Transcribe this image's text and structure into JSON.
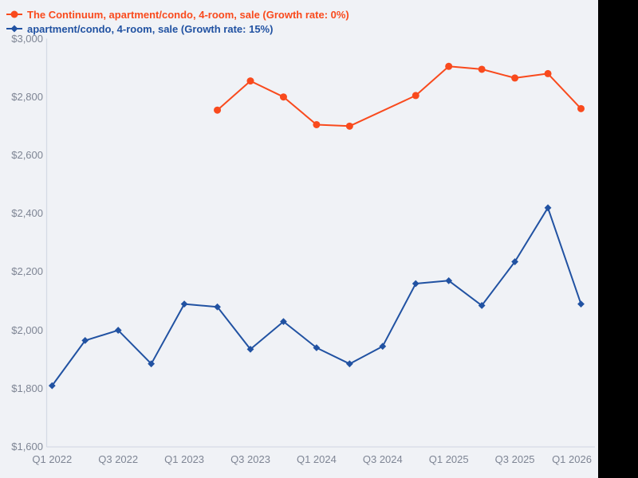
{
  "canvas": {
    "background_color": "#f0f2f6",
    "right_band_color": "#000000"
  },
  "legend": [
    {
      "label": "The Continuum, apartment/condo, 4-room, sale (Growth rate: 0%)",
      "color": "#f94a1d",
      "marker": "circle"
    },
    {
      "label": "apartment/condo, 4-room, sale (Growth rate: 15%)",
      "color": "#2152a2",
      "marker": "diamond"
    }
  ],
  "chart_data": {
    "type": "line",
    "title": "",
    "xlabel": "",
    "ylabel": "",
    "grid": false,
    "legend_position": "top-left",
    "ylim": [
      1600,
      3000
    ],
    "y_ticks": {
      "values": [
        3000,
        2800,
        2600,
        2400,
        2200,
        2000,
        1800,
        1600
      ],
      "labels": [
        "$3,000",
        "$2,800",
        "$2,600",
        "$2,400",
        "$2,200",
        "$2,000",
        "$1,800",
        "$1,600"
      ]
    },
    "categories": [
      "Q1 2022",
      "Q2 2022",
      "Q3 2022",
      "Q4 2022",
      "Q1 2023",
      "Q2 2023",
      "Q3 2023",
      "Q4 2023",
      "Q1 2024",
      "Q2 2024",
      "Q3 2024",
      "Q4 2024",
      "Q1 2025",
      "Q2 2025",
      "Q3 2025",
      "Q4 2025",
      "Q1 2026"
    ],
    "x_tick_indices": [
      0,
      2,
      4,
      6,
      8,
      10,
      12,
      14,
      16
    ],
    "x_tick_labels": [
      "Q1 2022",
      "Q3 2022",
      "Q1 2023",
      "Q3 2023",
      "Q1 2024",
      "Q3 2024",
      "Q1 2025",
      "Q3 2025",
      "Q1 2026"
    ],
    "series": [
      {
        "name": "The Continuum, apartment/condo, 4-room, sale (Growth rate: 0%)",
        "color": "#f94a1d",
        "marker": "circle",
        "connectgaps": true,
        "values": [
          null,
          null,
          null,
          null,
          null,
          2755,
          2855,
          2800,
          2705,
          2700,
          null,
          2805,
          2905,
          2895,
          2865,
          2880,
          2760
        ]
      },
      {
        "name": "apartment/condo, 4-room, sale (Growth rate: 15%)",
        "color": "#2152a2",
        "marker": "diamond",
        "connectgaps": true,
        "values": [
          1810,
          1965,
          2000,
          1885,
          2090,
          2080,
          1935,
          2030,
          1940,
          1885,
          1945,
          2160,
          2170,
          2085,
          2235,
          2420,
          2090
        ]
      }
    ],
    "axis_line_color": "#d5dae5",
    "tick_label_color": "#7e8594"
  }
}
